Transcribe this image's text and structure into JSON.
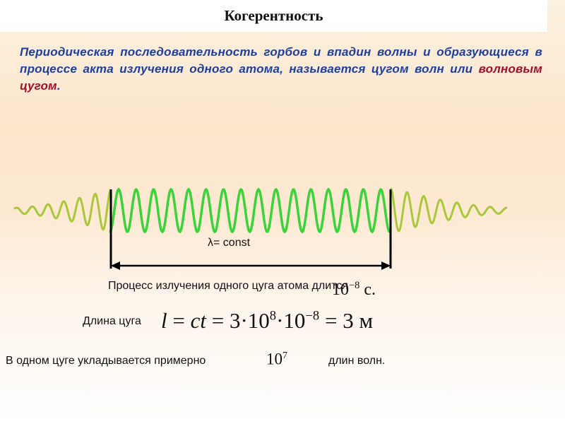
{
  "title": "Когерентность",
  "definition": {
    "text": "Периодическая последовательность горбов и впадин волны и образующиеся в процессе акта излучения одного атома, называется цугом волн или ",
    "highlight": "волновым цугом",
    "end": "."
  },
  "wavelength_label": "λ= const",
  "duration": {
    "text": "Процесс излучения одного цуга атома длится",
    "base": "10",
    "exp": "−8",
    "unit": "с."
  },
  "length": {
    "text": "Длина цуга",
    "lhs": "l",
    "eq1": "=",
    "ct": "ct",
    "eq2": "=",
    "three": "3·10",
    "exp1": "8",
    "mid": "·10",
    "exp2": "−8",
    "eq3": "=",
    "result": "3",
    "unit": "м"
  },
  "count": {
    "text": "В одном цуге укладывается примерно",
    "base": "10",
    "exp": "7",
    "end": "длин волн."
  }
}
